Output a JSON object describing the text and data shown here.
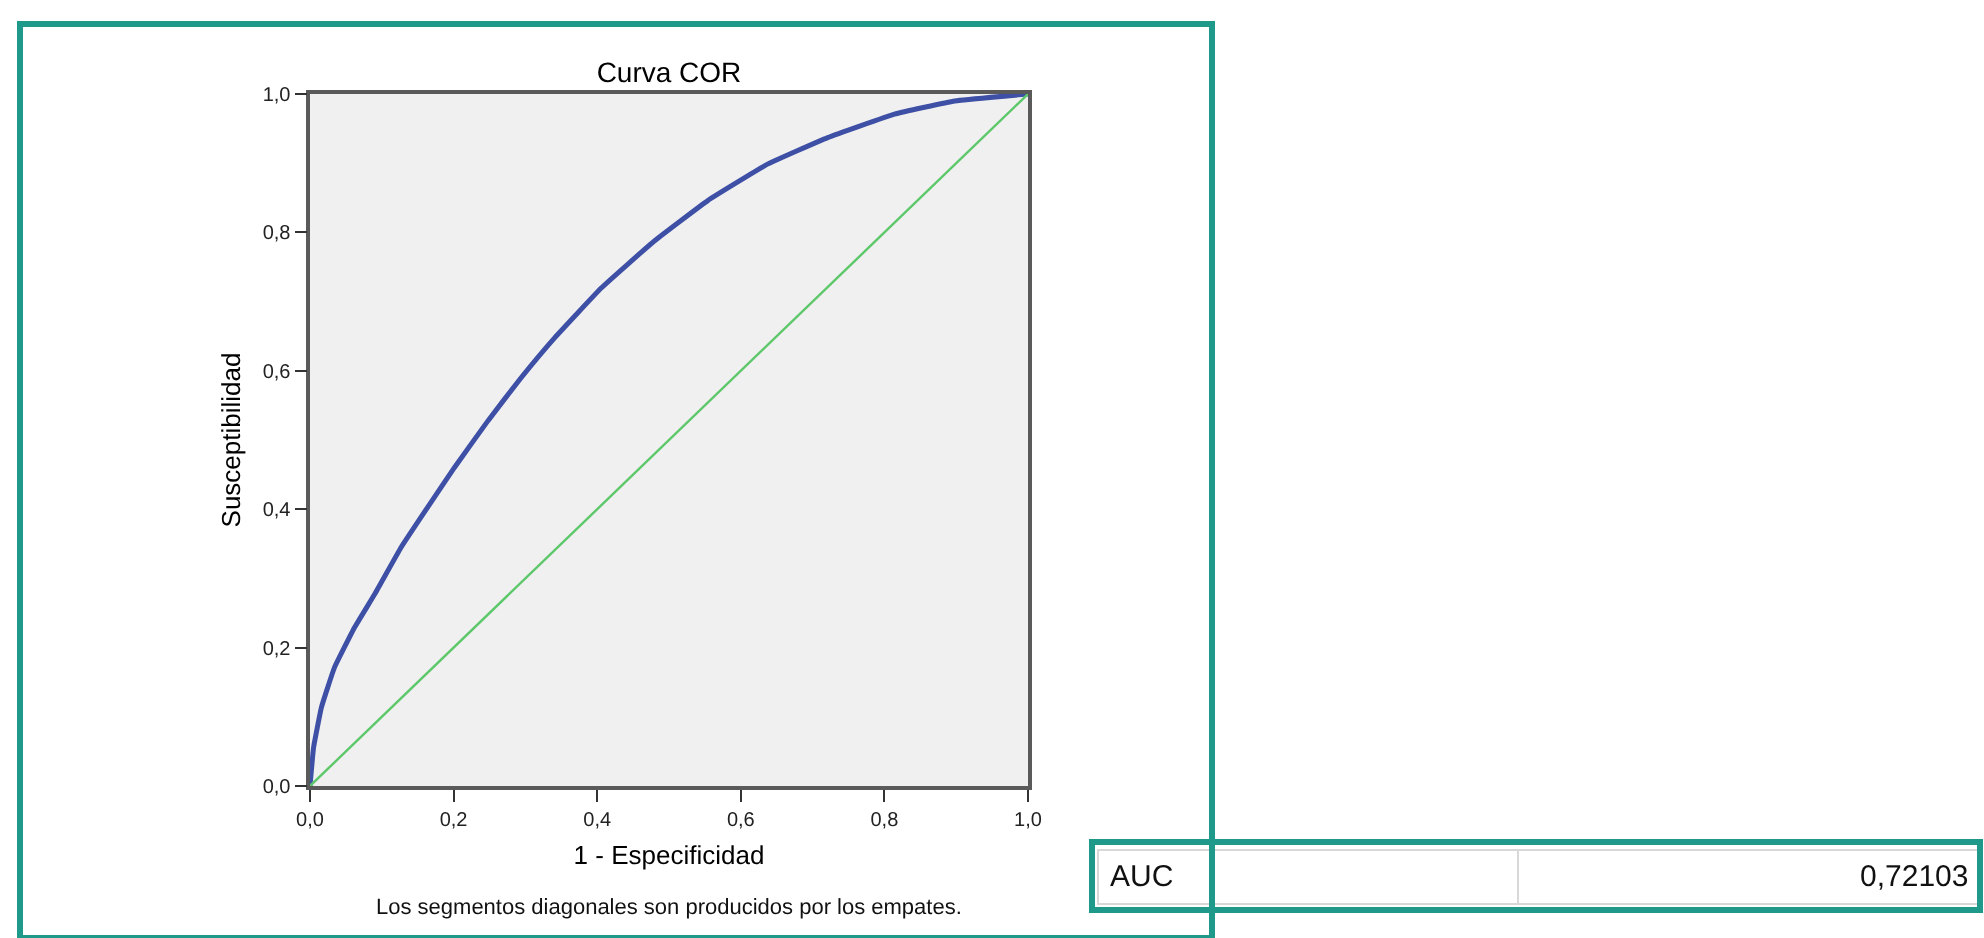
{
  "chart_data": {
    "type": "line",
    "title": "Curva COR",
    "xlabel": "1 - Especificidad",
    "ylabel": "Susceptibilidad",
    "annotations": [
      "Los segmentos diagonales son producidos por los empates.",
      "AUC",
      "0,72103"
    ],
    "series": [
      {
        "color": "#3e4fa6",
        "x": [
          0,
          0.005,
          0.016,
          0.034,
          0.062,
          0.09,
          0.127,
          0.164,
          0.201,
          0.248,
          0.294,
          0.341,
          0.406,
          0.48,
          0.554,
          0.638,
          0.721,
          0.814,
          0.898,
          1
        ],
        "values": [
          0,
          0.056,
          0.114,
          0.171,
          0.229,
          0.277,
          0.345,
          0.403,
          0.46,
          0.528,
          0.59,
          0.648,
          0.72,
          0.788,
          0.846,
          0.899,
          0.937,
          0.971,
          0.99,
          1
        ]
      },
      {
        "color": "#5dc86a",
        "x": [
          0,
          1
        ],
        "values": [
          0,
          1
        ]
      }
    ],
    "xlim": [
      0,
      1
    ],
    "ylim": [
      0,
      1
    ],
    "xticks": [
      {
        "value": 0,
        "label": "0,0"
      },
      {
        "value": 0.2,
        "label": "0,2"
      },
      {
        "value": 0.4,
        "label": "0,4"
      },
      {
        "value": 0.6,
        "label": "0,6"
      },
      {
        "value": 0.8,
        "label": "0,8"
      },
      {
        "value": 1,
        "label": "1,0"
      }
    ],
    "yticks": [
      {
        "value": 0,
        "label": "0,0"
      },
      {
        "value": 0.2,
        "label": "0,2"
      },
      {
        "value": 0.4,
        "label": "0,4"
      },
      {
        "value": 0.6,
        "label": "0,6"
      },
      {
        "value": 0.8,
        "label": "0,8"
      },
      {
        "value": 1,
        "label": "1,0"
      }
    ],
    "grid": false,
    "marker": "none",
    "line_style": "solid"
  }
}
